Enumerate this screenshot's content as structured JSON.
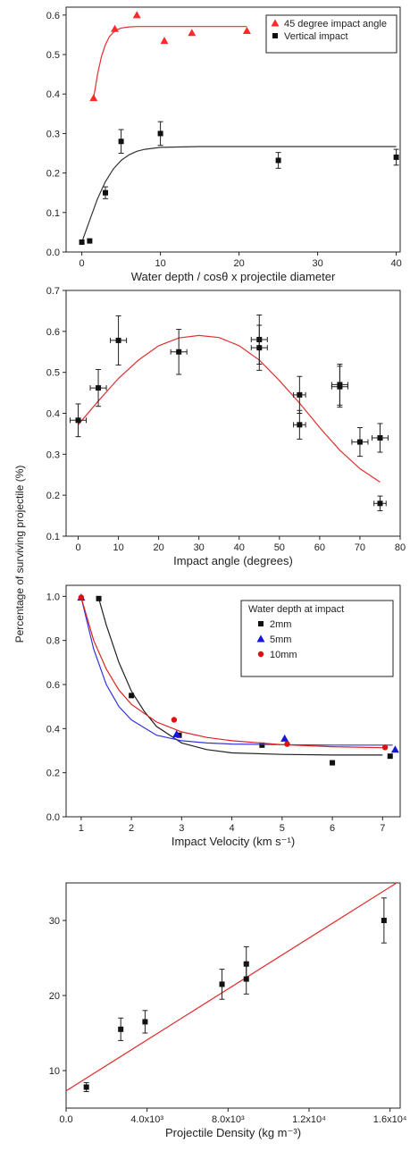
{
  "figure": {
    "shared_ylabel": "Percentage of surviving projectile (%)"
  },
  "chart_data": [
    {
      "type": "scatter",
      "xlabel": "Water depth / cosθ x projectile diameter",
      "ylabel": "",
      "xlim": [
        -2,
        40.5
      ],
      "ylim": [
        0,
        0.62
      ],
      "xticks": [
        0,
        10,
        20,
        30,
        40
      ],
      "yticks": [
        0.0,
        0.1,
        0.2,
        0.3,
        0.4,
        0.5,
        0.6
      ],
      "tick_decimals": 1,
      "grid": false,
      "legend": {
        "placement": "top-right",
        "boxed": true
      },
      "series": [
        {
          "name": "45 degree impact angle",
          "marker": "triangle",
          "color": "#ff2b2b",
          "x": [
            1.5,
            4.2,
            7.0,
            10.5,
            14.0,
            21.0
          ],
          "y": [
            0.39,
            0.565,
            0.6,
            0.535,
            0.555,
            0.56
          ],
          "yerr": [],
          "fit": {
            "color": "#e03030",
            "x": [
              1.5,
              2.0,
              2.5,
              3.0,
              3.5,
              4.0,
              4.5,
              5.0,
              6.0,
              7.0,
              8.0,
              10.0,
              15.0,
              21.0
            ],
            "y": [
              0.39,
              0.45,
              0.495,
              0.525,
              0.545,
              0.556,
              0.563,
              0.567,
              0.57,
              0.571,
              0.571,
              0.571,
              0.571,
              0.571
            ]
          }
        },
        {
          "name": "Vertical impact",
          "marker": "square",
          "color": "#111111",
          "x": [
            0.0,
            1.0,
            3.0,
            5.0,
            10.0,
            25.0,
            40.0
          ],
          "y": [
            0.025,
            0.028,
            0.15,
            0.28,
            0.3,
            0.232,
            0.24
          ],
          "yerr": [
            0,
            0,
            0.015,
            0.03,
            0.03,
            0.02,
            0.02
          ],
          "fit": {
            "color": "#333333",
            "x": [
              0.0,
              1.0,
              2.0,
              3.0,
              4.0,
              5.0,
              6.0,
              7.0,
              8.0,
              10.0,
              15.0,
              20.0,
              30.0,
              40.0
            ],
            "y": [
              0.025,
              0.08,
              0.135,
              0.178,
              0.21,
              0.232,
              0.246,
              0.255,
              0.26,
              0.265,
              0.267,
              0.267,
              0.267,
              0.267
            ]
          }
        }
      ]
    },
    {
      "type": "scatter",
      "xlabel": "Impact angle (degrees)",
      "ylabel": "",
      "xlim": [
        -3,
        80
      ],
      "ylim": [
        0.1,
        0.7
      ],
      "xticks": [
        0,
        10,
        20,
        30,
        40,
        50,
        60,
        70,
        80
      ],
      "yticks": [
        0.1,
        0.2,
        0.3,
        0.4,
        0.5,
        0.6,
        0.7
      ],
      "tick_decimals": 1,
      "grid": false,
      "series": [
        {
          "name": "",
          "marker": "square",
          "color": "#111111",
          "x": [
            0,
            5,
            10,
            25,
            45,
            45,
            55,
            55,
            65,
            65,
            70,
            75,
            75
          ],
          "y": [
            0.383,
            0.462,
            0.578,
            0.55,
            0.58,
            0.56,
            0.445,
            0.372,
            0.47,
            0.465,
            0.33,
            0.34,
            0.18
          ],
          "yerr": [
            0.04,
            0.045,
            0.06,
            0.055,
            0.06,
            0.055,
            0.045,
            0.035,
            0.05,
            0.05,
            0.035,
            0.035,
            0.018
          ],
          "xerr": [
            2,
            2,
            2,
            2,
            2,
            2,
            1.5,
            1.5,
            2,
            2,
            2,
            2,
            1.5
          ],
          "fit": {
            "color": "#e03030",
            "x": [
              0,
              5,
              10,
              15,
              20,
              25,
              30,
              35,
              40,
              45,
              50,
              55,
              60,
              65,
              70,
              75
            ],
            "y": [
              0.372,
              0.43,
              0.485,
              0.53,
              0.565,
              0.584,
              0.59,
              0.585,
              0.565,
              0.53,
              0.48,
              0.425,
              0.365,
              0.31,
              0.265,
              0.232
            ]
          }
        }
      ]
    },
    {
      "type": "scatter",
      "xlabel": "Impact Velocity (km s⁻¹)",
      "ylabel": "",
      "xlim": [
        0.7,
        7.35
      ],
      "ylim": [
        0,
        1.05
      ],
      "xticks": [
        1,
        2,
        3,
        4,
        5,
        6,
        7
      ],
      "yticks": [
        0.0,
        0.2,
        0.4,
        0.6,
        0.8,
        1.0
      ],
      "tick_decimals": 1,
      "grid": false,
      "legend": {
        "title": "Water depth at impact",
        "placement": "top-right",
        "boxed": true
      },
      "series": [
        {
          "name": "2mm",
          "marker": "square",
          "color": "#111111",
          "x": [
            1.35,
            2.0,
            2.95,
            4.6,
            6.0,
            7.15
          ],
          "y": [
            0.99,
            0.55,
            0.37,
            0.325,
            0.245,
            0.275
          ],
          "fit": {
            "color": "#222222",
            "x": [
              1.35,
              1.5,
              1.75,
              2.0,
              2.25,
              2.5,
              3.0,
              3.5,
              4.0,
              5.0,
              6.0,
              7.0
            ],
            "y": [
              0.99,
              0.87,
              0.7,
              0.57,
              0.48,
              0.41,
              0.335,
              0.305,
              0.29,
              0.283,
              0.28,
              0.28
            ]
          }
        },
        {
          "name": "5mm",
          "marker": "triangle",
          "color": "#1515dd",
          "x": [
            1.0,
            2.9,
            5.05,
            7.25
          ],
          "y": [
            0.995,
            0.375,
            0.355,
            0.305
          ],
          "fit": {
            "color": "#3333dd",
            "x": [
              1.0,
              1.25,
              1.5,
              1.75,
              2.0,
              2.5,
              3.0,
              3.5,
              4.0,
              5.0,
              6.0,
              7.2
            ],
            "y": [
              0.995,
              0.76,
              0.6,
              0.5,
              0.44,
              0.37,
              0.345,
              0.335,
              0.33,
              0.327,
              0.325,
              0.325
            ]
          }
        },
        {
          "name": "10mm",
          "marker": "circle",
          "color": "#dd1111",
          "x": [
            1.0,
            2.85,
            5.1,
            7.05
          ],
          "y": [
            0.995,
            0.44,
            0.33,
            0.315
          ],
          "fit": {
            "color": "#dd2222",
            "x": [
              1.0,
              1.25,
              1.5,
              1.75,
              2.0,
              2.5,
              3.0,
              3.5,
              4.0,
              5.0,
              6.0,
              7.1
            ],
            "y": [
              0.995,
              0.8,
              0.67,
              0.575,
              0.51,
              0.43,
              0.385,
              0.36,
              0.345,
              0.327,
              0.318,
              0.313
            ]
          }
        }
      ]
    },
    {
      "type": "scatter",
      "xlabel": "Projectile Density (kg m⁻³)",
      "ylabel": "",
      "xlim": [
        0,
        16500
      ],
      "ylim": [
        5,
        35
      ],
      "xticks": [
        0,
        4000,
        8000,
        12000,
        16000
      ],
      "xtick_labels": [
        "0.0",
        "4.0x10³",
        "8.0x10³",
        "1.2x10⁴",
        "1.6x10⁴"
      ],
      "yticks": [
        10,
        20,
        30
      ],
      "tick_decimals": 0,
      "grid": false,
      "series": [
        {
          "name": "",
          "marker": "square",
          "color": "#111111",
          "x": [
            1000,
            2700,
            3900,
            7700,
            8900,
            8900,
            15700
          ],
          "y": [
            7.8,
            15.5,
            16.5,
            21.5,
            24.2,
            22.2,
            30.0
          ],
          "yerr": [
            0.6,
            1.5,
            1.5,
            2.0,
            2.3,
            2.0,
            3.0
          ],
          "fit": {
            "color": "#e03030",
            "x": [
              0,
              16500
            ],
            "y": [
              7.3,
              35.3
            ]
          }
        }
      ]
    }
  ]
}
